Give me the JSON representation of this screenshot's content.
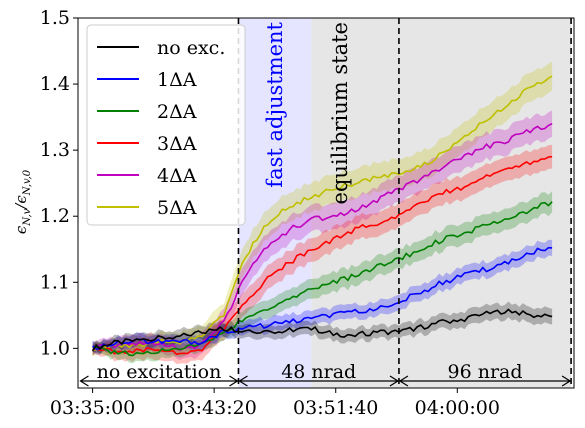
{
  "chart_data": {
    "type": "line",
    "xlabel": "",
    "ylabel": "ε_{N,v}/ε_{N,v,0}",
    "ylabel_parts": {
      "main": "ϵ",
      "sub1": "N,v",
      "sep": "/ϵ",
      "sub2": "N,v,0"
    },
    "x_unit": "minutes since 03:35:00",
    "xlim": [
      -1.0,
      33.0
    ],
    "ylim": [
      0.94,
      1.5
    ],
    "xticks": [
      {
        "x": 0.0,
        "label": "03:35:00"
      },
      {
        "x": 8.333,
        "label": "03:43:20"
      },
      {
        "x": 16.667,
        "label": "03:51:40"
      },
      {
        "x": 25.0,
        "label": "04:00:00"
      }
    ],
    "yticks": [
      {
        "y": 1.0,
        "label": "1.0"
      },
      {
        "y": 1.1,
        "label": "1.1"
      },
      {
        "y": 1.2,
        "label": "1.2"
      },
      {
        "y": 1.3,
        "label": "1.3"
      },
      {
        "y": 1.4,
        "label": "1.4"
      },
      {
        "y": 1.5,
        "label": "1.5"
      }
    ],
    "grid": false,
    "legend_position": "top-left",
    "series": [
      {
        "name": "no exc.",
        "color": "#000000",
        "x": [
          0,
          1.5,
          3,
          4.5,
          6,
          7.5,
          9,
          10.5,
          12,
          13.5,
          15,
          16.5,
          18,
          19.5,
          21,
          22.5,
          24,
          25.5,
          27,
          28.5,
          30,
          31.5
        ],
        "y": [
          1.0,
          1.008,
          1.012,
          1.015,
          1.018,
          1.025,
          1.03,
          1.028,
          1.025,
          1.028,
          1.03,
          1.022,
          1.02,
          1.025,
          1.025,
          1.032,
          1.04,
          1.045,
          1.052,
          1.058,
          1.05,
          1.048
        ],
        "band": [
          0.008,
          0.009,
          0.01,
          0.01,
          0.01,
          0.01,
          0.01,
          0.01,
          0.01,
          0.01,
          0.01,
          0.01,
          0.01,
          0.01,
          0.01,
          0.011,
          0.011,
          0.012,
          0.012,
          0.012,
          0.012,
          0.012
        ]
      },
      {
        "name": "1ΔA",
        "color": "#0000ff",
        "x": [
          0,
          1.5,
          3,
          4.5,
          6,
          7.5,
          9,
          10.5,
          12,
          13.5,
          15,
          16.5,
          18,
          19.5,
          21,
          22.5,
          24,
          25.5,
          27,
          28.5,
          30,
          31.5
        ],
        "y": [
          1.0,
          1.008,
          1.012,
          1.01,
          1.01,
          1.01,
          1.025,
          1.032,
          1.035,
          1.04,
          1.045,
          1.05,
          1.055,
          1.062,
          1.07,
          1.085,
          1.1,
          1.11,
          1.12,
          1.13,
          1.145,
          1.152
        ],
        "band": [
          0.008,
          0.009,
          0.01,
          0.01,
          0.01,
          0.01,
          0.01,
          0.01,
          0.011,
          0.011,
          0.011,
          0.011,
          0.011,
          0.011,
          0.012,
          0.012,
          0.012,
          0.012,
          0.012,
          0.012,
          0.012,
          0.012
        ]
      },
      {
        "name": "2ΔA",
        "color": "#008000",
        "x": [
          0,
          1.5,
          3,
          4.5,
          6,
          7.5,
          9,
          10.5,
          12,
          13.5,
          15,
          16.5,
          18,
          19.5,
          21,
          22.5,
          24,
          25.5,
          27,
          28.5,
          30,
          31.5
        ],
        "y": [
          1.0,
          0.995,
          0.99,
          0.995,
          1.0,
          1.005,
          1.025,
          1.045,
          1.06,
          1.075,
          1.09,
          1.1,
          1.11,
          1.125,
          1.135,
          1.15,
          1.165,
          1.175,
          1.185,
          1.195,
          1.21,
          1.222
        ],
        "band": [
          0.008,
          0.01,
          0.012,
          0.012,
          0.012,
          0.012,
          0.012,
          0.014,
          0.014,
          0.014,
          0.015,
          0.015,
          0.015,
          0.015,
          0.015,
          0.015,
          0.016,
          0.016,
          0.016,
          0.016,
          0.016,
          0.016
        ]
      },
      {
        "name": "3ΔA",
        "color": "#ff0000",
        "x": [
          0,
          1.5,
          3,
          4.5,
          6,
          7.5,
          9,
          10.5,
          12,
          13.5,
          15,
          16.5,
          18,
          19.5,
          21,
          22.5,
          24,
          25.5,
          27,
          28.5,
          30,
          31.5
        ],
        "y": [
          1.0,
          0.995,
          0.995,
          1.0,
          0.992,
          0.998,
          1.03,
          1.07,
          1.105,
          1.13,
          1.15,
          1.165,
          1.18,
          1.19,
          1.2,
          1.22,
          1.235,
          1.245,
          1.26,
          1.27,
          1.28,
          1.29
        ],
        "band": [
          0.008,
          0.012,
          0.014,
          0.015,
          0.015,
          0.015,
          0.016,
          0.018,
          0.018,
          0.018,
          0.018,
          0.018,
          0.018,
          0.018,
          0.018,
          0.018,
          0.018,
          0.018,
          0.018,
          0.018,
          0.018,
          0.018
        ]
      },
      {
        "name": "4ΔA",
        "color": "#bf00bf",
        "x": [
          0,
          1.5,
          3,
          4.5,
          6,
          7.5,
          9,
          10.5,
          12,
          13.5,
          15,
          16.5,
          18,
          19.5,
          21,
          22.5,
          24,
          25.5,
          27,
          28.5,
          30,
          31.5
        ],
        "y": [
          1.0,
          1.005,
          1.008,
          1.01,
          1.0,
          1.005,
          1.04,
          1.11,
          1.155,
          1.18,
          1.195,
          1.2,
          1.21,
          1.225,
          1.24,
          1.255,
          1.275,
          1.29,
          1.305,
          1.315,
          1.33,
          1.34
        ],
        "band": [
          0.008,
          0.012,
          0.014,
          0.014,
          0.015,
          0.016,
          0.018,
          0.02,
          0.02,
          0.02,
          0.02,
          0.02,
          0.02,
          0.02,
          0.02,
          0.02,
          0.02,
          0.02,
          0.02,
          0.02,
          0.02,
          0.02
        ]
      },
      {
        "name": "5ΔA",
        "color": "#bfbf00",
        "x": [
          0,
          1.5,
          3,
          4.5,
          6,
          7.5,
          9,
          10.5,
          12,
          13.5,
          15,
          16.5,
          18,
          19.5,
          21,
          22.5,
          24,
          25.5,
          27,
          28.5,
          30,
          31.5
        ],
        "y": [
          1.0,
          1.002,
          1.005,
          1.01,
          1.01,
          1.02,
          1.05,
          1.14,
          1.19,
          1.215,
          1.23,
          1.24,
          1.25,
          1.258,
          1.265,
          1.275,
          1.295,
          1.32,
          1.345,
          1.37,
          1.395,
          1.412
        ],
        "band": [
          0.008,
          0.012,
          0.014,
          0.014,
          0.015,
          0.016,
          0.018,
          0.022,
          0.022,
          0.022,
          0.022,
          0.022,
          0.022,
          0.022,
          0.022,
          0.022,
          0.022,
          0.022,
          0.022,
          0.022,
          0.022,
          0.022
        ]
      }
    ],
    "shaded_regions": [
      {
        "x0": 10.0,
        "x1": 15.0,
        "color": "#e5e5ff"
      },
      {
        "x0": 15.0,
        "x1": 32.8,
        "color": "#e6e6e6"
      }
    ],
    "vlines": [
      10.0,
      21.0,
      32.8
    ],
    "annotations": {
      "fast": {
        "text": "fast adjustment",
        "color": "#0000ff"
      },
      "equilibrium": {
        "text": "equilibrium state",
        "color": "#000000"
      }
    },
    "spans": [
      {
        "x0": -0.9,
        "x1": 10.0,
        "label": "no excitation"
      },
      {
        "x0": 10.0,
        "x1": 21.0,
        "label": "48 nrad"
      },
      {
        "x0": 21.0,
        "x1": 32.8,
        "label": "96 nrad"
      }
    ]
  }
}
